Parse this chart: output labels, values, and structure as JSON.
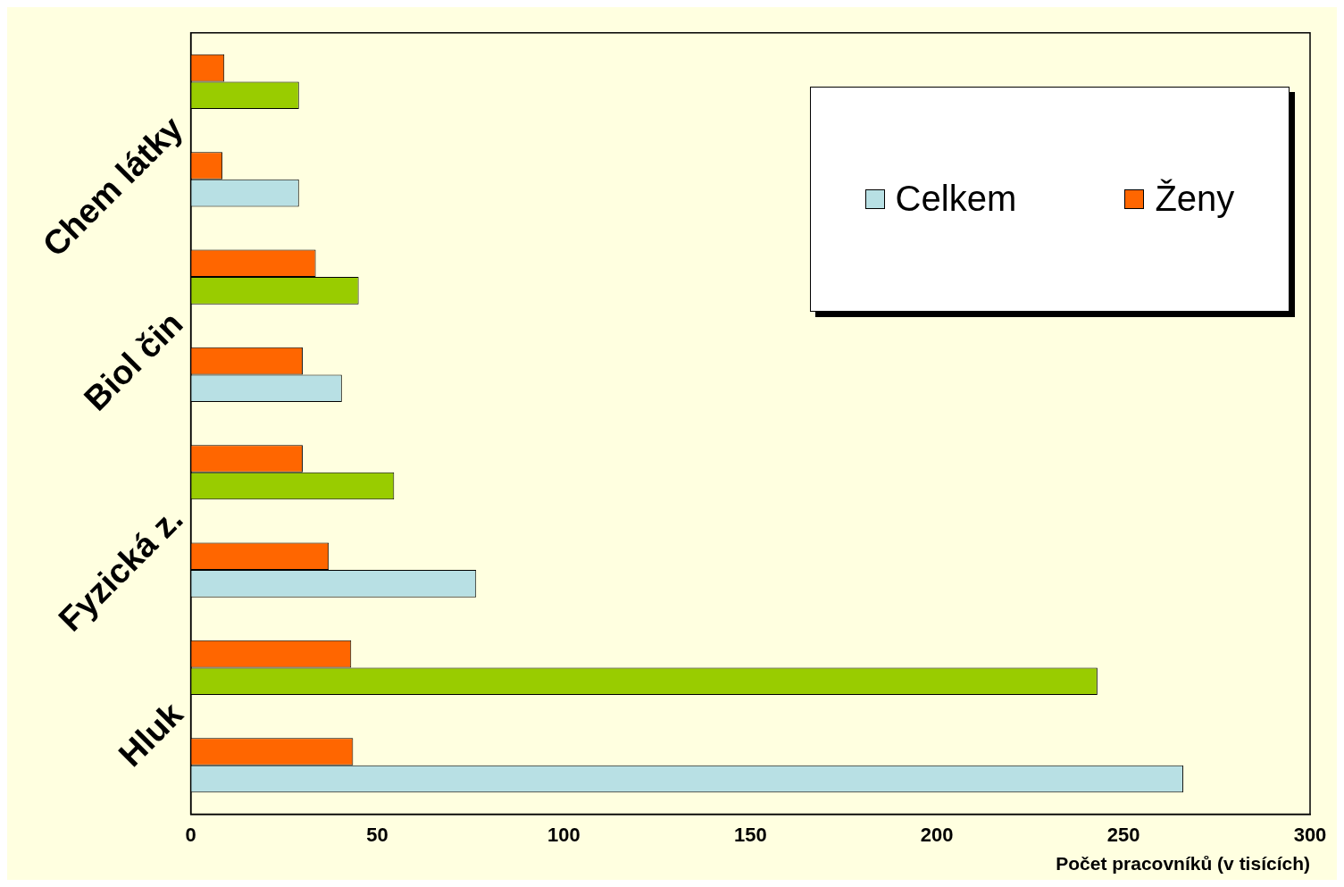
{
  "chart_data": {
    "type": "bar",
    "orientation": "horizontal",
    "categories": [
      null,
      "Chem látky",
      null,
      "Biol čin",
      null,
      "Fyzická z.",
      null,
      "Hluk"
    ],
    "series": [
      {
        "name": "Ženy",
        "color": "#ff6600",
        "values": [
          9,
          8.5,
          33.5,
          30,
          30,
          37,
          43,
          43.5
        ]
      },
      {
        "name": "Celkem",
        "color": "#b8e0e4",
        "colors": [
          "#99cc00",
          "#b8e0e4",
          "#99cc00",
          "#b8e0e4",
          "#99cc00",
          "#b8e0e4",
          "#99cc00",
          "#b8e0e4"
        ],
        "values": [
          29,
          29,
          45,
          40.5,
          54.5,
          76.5,
          243,
          266
        ]
      }
    ],
    "xlim": [
      0,
      300
    ],
    "xticks": [
      0,
      50,
      100,
      150,
      200,
      250,
      300
    ],
    "xlabel": "Počet pracovníků (v tisících)",
    "legend": "top right"
  }
}
